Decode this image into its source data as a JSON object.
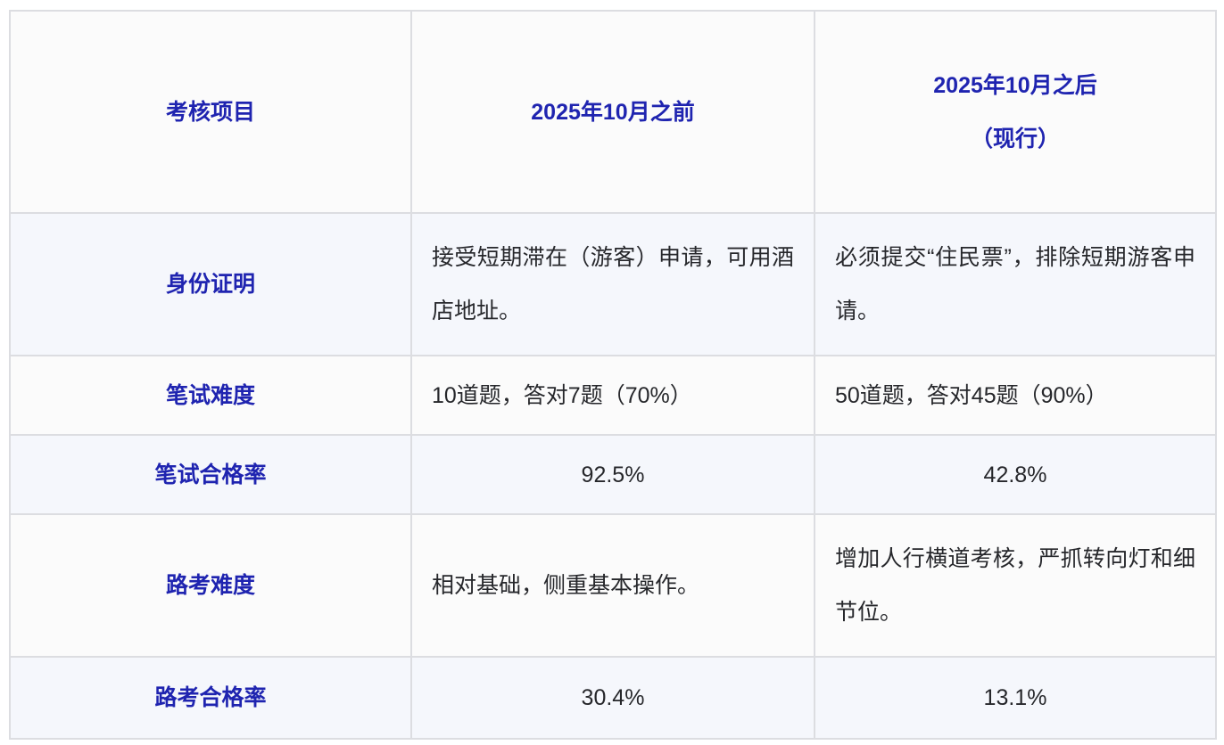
{
  "colors": {
    "accent": "#1f24b0",
    "body-text": "#26272b",
    "row-default-bg": "#fbfbfb",
    "row-alt-bg": "#f5f7fc",
    "border": "#dcdde1",
    "page-bg": "#ffffff"
  },
  "table": {
    "headers": {
      "item": {
        "label": "考核项目"
      },
      "before": {
        "label": "2025年10月之前"
      },
      "after": {
        "label_line1": "2025年10月之后",
        "label_line2": "（现行）"
      }
    },
    "rows": [
      {
        "item": "身份证明",
        "before": "接受短期滞在（游客）申请，可用酒店地址。",
        "after": "必须提交“住民票”，排除短期游客申请。"
      },
      {
        "item": "笔试难度",
        "before": "10道题，答对7题（70%）",
        "after": "50道题，答对45题（90%）"
      },
      {
        "item": "笔试合格率",
        "before": "92.5%",
        "after": "42.8%"
      },
      {
        "item": "路考难度",
        "before": "相对基础，侧重基本操作。",
        "after": "增加人行横道考核，严抓转向灯和细节位。"
      },
      {
        "item": "路考合格率",
        "before": "30.4%",
        "after": "13.1%"
      }
    ]
  }
}
